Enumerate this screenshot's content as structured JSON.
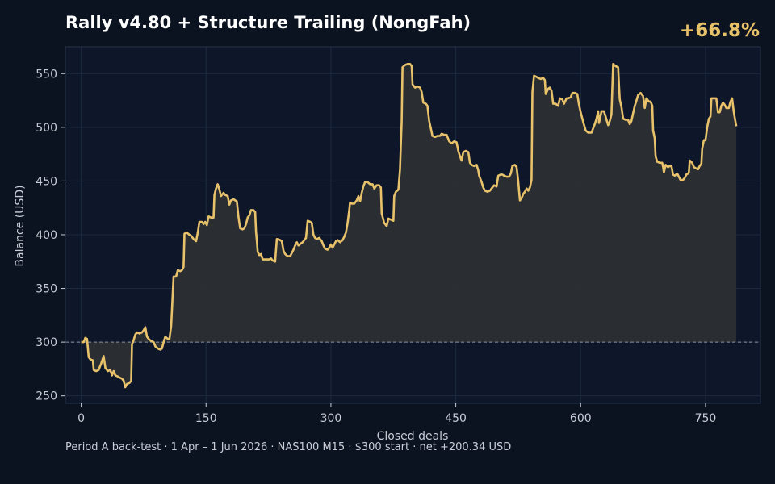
{
  "header": {
    "title": "Rally v4.80 + Structure Trailing (NongFah)",
    "return_pct": "+66.8%"
  },
  "footer": {
    "caption": "Period A back-test  ·  1 Apr – 1 Jun 2026  ·  NAS100 M15  ·  $300 start  ·  net +200.34 USD"
  },
  "colors": {
    "background": "#0b1220",
    "plot_bg": "#0e172a",
    "line": "#e8c26a",
    "fill": "#2e3033",
    "grid": "#1c2a40",
    "text": "#c8cdd6",
    "title": "#ffffff",
    "accent": "#e8c26a",
    "baseline": "#8a93a0"
  },
  "chart_data": {
    "type": "line",
    "xlabel": "Closed deals",
    "ylabel": "Balance (USD)",
    "xlim": [
      -19,
      816
    ],
    "ylim": [
      243,
      575
    ],
    "xticks": [
      0,
      150,
      300,
      450,
      600,
      750
    ],
    "yticks": [
      250,
      300,
      350,
      400,
      450,
      500,
      550
    ],
    "baseline": 300,
    "grid": true,
    "points": [
      [
        0,
        300
      ],
      [
        3,
        300
      ],
      [
        5,
        304
      ],
      [
        7,
        303
      ],
      [
        9,
        286
      ],
      [
        11,
        284
      ],
      [
        14,
        283
      ],
      [
        15,
        274
      ],
      [
        18,
        273
      ],
      [
        21,
        274
      ],
      [
        24,
        280
      ],
      [
        27,
        287
      ],
      [
        29,
        276
      ],
      [
        32,
        273
      ],
      [
        35,
        274
      ],
      [
        37,
        269
      ],
      [
        39,
        273
      ],
      [
        41,
        269
      ],
      [
        44,
        268
      ],
      [
        46,
        267
      ],
      [
        49,
        266
      ],
      [
        51,
        264
      ],
      [
        53,
        258
      ],
      [
        55,
        261
      ],
      [
        58,
        262
      ],
      [
        60,
        264
      ],
      [
        61,
        298
      ],
      [
        63,
        302
      ],
      [
        65,
        307
      ],
      [
        67,
        309
      ],
      [
        70,
        308
      ],
      [
        73,
        309
      ],
      [
        75,
        311
      ],
      [
        77,
        314
      ],
      [
        79,
        305
      ],
      [
        81,
        303
      ],
      [
        84,
        301
      ],
      [
        87,
        300
      ],
      [
        89,
        296
      ],
      [
        92,
        294
      ],
      [
        95,
        293
      ],
      [
        97,
        294
      ],
      [
        99,
        300
      ],
      [
        101,
        305
      ],
      [
        104,
        303
      ],
      [
        106,
        303
      ],
      [
        108,
        315
      ],
      [
        109,
        330
      ],
      [
        110,
        346
      ],
      [
        111,
        361
      ],
      [
        114,
        361
      ],
      [
        116,
        367
      ],
      [
        119,
        366
      ],
      [
        121,
        367
      ],
      [
        123,
        370
      ],
      [
        124,
        401
      ],
      [
        127,
        402
      ],
      [
        130,
        400
      ],
      [
        132,
        399
      ],
      [
        135,
        396
      ],
      [
        138,
        394
      ],
      [
        140,
        402
      ],
      [
        142,
        412
      ],
      [
        145,
        412
      ],
      [
        147,
        410
      ],
      [
        149,
        412
      ],
      [
        151,
        409
      ],
      [
        153,
        417
      ],
      [
        156,
        416
      ],
      [
        159,
        416
      ],
      [
        160,
        437
      ],
      [
        162,
        443
      ],
      [
        164,
        447
      ],
      [
        166,
        442
      ],
      [
        168,
        436
      ],
      [
        171,
        439
      ],
      [
        173,
        437
      ],
      [
        176,
        436
      ],
      [
        178,
        428
      ],
      [
        180,
        432
      ],
      [
        183,
        433
      ],
      [
        185,
        432
      ],
      [
        187,
        431
      ],
      [
        189,
        416
      ],
      [
        191,
        406
      ],
      [
        194,
        405
      ],
      [
        196,
        406
      ],
      [
        198,
        410
      ],
      [
        200,
        416
      ],
      [
        202,
        418
      ],
      [
        204,
        423
      ],
      [
        207,
        423
      ],
      [
        209,
        421
      ],
      [
        210,
        403
      ],
      [
        211,
        394
      ],
      [
        212,
        384
      ],
      [
        214,
        381
      ],
      [
        216,
        382
      ],
      [
        218,
        377
      ],
      [
        222,
        377
      ],
      [
        226,
        377
      ],
      [
        228,
        378
      ],
      [
        230,
        376
      ],
      [
        233,
        375
      ],
      [
        235,
        396
      ],
      [
        239,
        395
      ],
      [
        241,
        394
      ],
      [
        243,
        385
      ],
      [
        245,
        382
      ],
      [
        248,
        380
      ],
      [
        251,
        380
      ],
      [
        253,
        383
      ],
      [
        255,
        386
      ],
      [
        257,
        390
      ],
      [
        259,
        393
      ],
      [
        261,
        390
      ],
      [
        264,
        392
      ],
      [
        266,
        393
      ],
      [
        268,
        395
      ],
      [
        270,
        397
      ],
      [
        272,
        413
      ],
      [
        275,
        412
      ],
      [
        277,
        411
      ],
      [
        279,
        400
      ],
      [
        281,
        397
      ],
      [
        283,
        396
      ],
      [
        286,
        397
      ],
      [
        289,
        394
      ],
      [
        291,
        390
      ],
      [
        293,
        387
      ],
      [
        296,
        386
      ],
      [
        298,
        388
      ],
      [
        300,
        391
      ],
      [
        302,
        388
      ],
      [
        304,
        391
      ],
      [
        306,
        394
      ],
      [
        308,
        395
      ],
      [
        311,
        393
      ],
      [
        314,
        395
      ],
      [
        316,
        398
      ],
      [
        318,
        402
      ],
      [
        320,
        411
      ],
      [
        322,
        423
      ],
      [
        323,
        430
      ],
      [
        325,
        429
      ],
      [
        328,
        429
      ],
      [
        331,
        432
      ],
      [
        333,
        436
      ],
      [
        335,
        431
      ],
      [
        337,
        439
      ],
      [
        339,
        445
      ],
      [
        341,
        449
      ],
      [
        344,
        449
      ],
      [
        347,
        447
      ],
      [
        350,
        447
      ],
      [
        352,
        443
      ],
      [
        355,
        446
      ],
      [
        358,
        446
      ],
      [
        360,
        444
      ],
      [
        361,
        420
      ],
      [
        364,
        411
      ],
      [
        367,
        408
      ],
      [
        369,
        415
      ],
      [
        372,
        414
      ],
      [
        375,
        413
      ],
      [
        376,
        436
      ],
      [
        378,
        440
      ],
      [
        381,
        442
      ],
      [
        383,
        461
      ],
      [
        385,
        506
      ],
      [
        386,
        556
      ],
      [
        389,
        558
      ],
      [
        392,
        559
      ],
      [
        395,
        559
      ],
      [
        397,
        557
      ],
      [
        398,
        540
      ],
      [
        401,
        537
      ],
      [
        404,
        538
      ],
      [
        407,
        537
      ],
      [
        409,
        533
      ],
      [
        411,
        523
      ],
      [
        414,
        522
      ],
      [
        416,
        520
      ],
      [
        418,
        506
      ],
      [
        420,
        499
      ],
      [
        422,
        492
      ],
      [
        425,
        491
      ],
      [
        428,
        492
      ],
      [
        431,
        492
      ],
      [
        433,
        494
      ],
      [
        436,
        493
      ],
      [
        439,
        493
      ],
      [
        442,
        487
      ],
      [
        445,
        485
      ],
      [
        448,
        487
      ],
      [
        451,
        486
      ],
      [
        453,
        478
      ],
      [
        455,
        473
      ],
      [
        457,
        469
      ],
      [
        459,
        477
      ],
      [
        462,
        478
      ],
      [
        465,
        477
      ],
      [
        467,
        467
      ],
      [
        469,
        465
      ],
      [
        472,
        464
      ],
      [
        475,
        465
      ],
      [
        477,
        460
      ],
      [
        478,
        455
      ],
      [
        481,
        449
      ],
      [
        483,
        444
      ],
      [
        485,
        441
      ],
      [
        488,
        440
      ],
      [
        491,
        441
      ],
      [
        493,
        443
      ],
      [
        496,
        446
      ],
      [
        499,
        445
      ],
      [
        501,
        455
      ],
      [
        504,
        456
      ],
      [
        506,
        456
      ],
      [
        508,
        455
      ],
      [
        511,
        454
      ],
      [
        514,
        454
      ],
      [
        516,
        457
      ],
      [
        518,
        464
      ],
      [
        521,
        465
      ],
      [
        523,
        463
      ],
      [
        525,
        450
      ],
      [
        527,
        432
      ],
      [
        529,
        434
      ],
      [
        531,
        438
      ],
      [
        533,
        440
      ],
      [
        535,
        443
      ],
      [
        537,
        441
      ],
      [
        539,
        444
      ],
      [
        541,
        451
      ],
      [
        542,
        533
      ],
      [
        544,
        548
      ],
      [
        547,
        547
      ],
      [
        549,
        546
      ],
      [
        552,
        545
      ],
      [
        555,
        546
      ],
      [
        557,
        544
      ],
      [
        558,
        531
      ],
      [
        561,
        536
      ],
      [
        563,
        537
      ],
      [
        565,
        534
      ],
      [
        567,
        522
      ],
      [
        570,
        522
      ],
      [
        573,
        520
      ],
      [
        575,
        527
      ],
      [
        578,
        526
      ],
      [
        580,
        522
      ],
      [
        583,
        527
      ],
      [
        585,
        527
      ],
      [
        588,
        528
      ],
      [
        590,
        532
      ],
      [
        593,
        532
      ],
      [
        596,
        531
      ],
      [
        598,
        521
      ],
      [
        600,
        514
      ],
      [
        603,
        505
      ],
      [
        606,
        497
      ],
      [
        609,
        495
      ],
      [
        613,
        495
      ],
      [
        615,
        499
      ],
      [
        617,
        503
      ],
      [
        619,
        508
      ],
      [
        621,
        515
      ],
      [
        622,
        504
      ],
      [
        625,
        515
      ],
      [
        628,
        515
      ],
      [
        630,
        510
      ],
      [
        633,
        502
      ],
      [
        635,
        506
      ],
      [
        637,
        512
      ],
      [
        638,
        537
      ],
      [
        639,
        559
      ],
      [
        642,
        557
      ],
      [
        645,
        556
      ],
      [
        646,
        540
      ],
      [
        647,
        526
      ],
      [
        649,
        519
      ],
      [
        651,
        508
      ],
      [
        654,
        507
      ],
      [
        657,
        507
      ],
      [
        659,
        503
      ],
      [
        661,
        506
      ],
      [
        663,
        513
      ],
      [
        665,
        520
      ],
      [
        667,
        525
      ],
      [
        669,
        530
      ],
      [
        672,
        532
      ],
      [
        675,
        529
      ],
      [
        677,
        518
      ],
      [
        679,
        527
      ],
      [
        682,
        524
      ],
      [
        684,
        524
      ],
      [
        686,
        520
      ],
      [
        687,
        497
      ],
      [
        689,
        490
      ],
      [
        690,
        473
      ],
      [
        692,
        468
      ],
      [
        695,
        467
      ],
      [
        698,
        467
      ],
      [
        699,
        463
      ],
      [
        700,
        458
      ],
      [
        702,
        465
      ],
      [
        705,
        463
      ],
      [
        707,
        464
      ],
      [
        709,
        464
      ],
      [
        711,
        456
      ],
      [
        713,
        455
      ],
      [
        716,
        457
      ],
      [
        718,
        454
      ],
      [
        720,
        451
      ],
      [
        723,
        451
      ],
      [
        725,
        453
      ],
      [
        727,
        456
      ],
      [
        729,
        457
      ],
      [
        730,
        458
      ],
      [
        731,
        469
      ],
      [
        734,
        467
      ],
      [
        736,
        463
      ],
      [
        738,
        462
      ],
      [
        741,
        461
      ],
      [
        743,
        464
      ],
      [
        745,
        466
      ],
      [
        746,
        480
      ],
      [
        748,
        488
      ],
      [
        750,
        488
      ],
      [
        752,
        500
      ],
      [
        754,
        508
      ],
      [
        756,
        510
      ],
      [
        757,
        527
      ],
      [
        760,
        527
      ],
      [
        763,
        527
      ],
      [
        765,
        514
      ],
      [
        767,
        514
      ],
      [
        769,
        520
      ],
      [
        771,
        523
      ],
      [
        773,
        521
      ],
      [
        775,
        518
      ],
      [
        778,
        518
      ],
      [
        780,
        524
      ],
      [
        782,
        527
      ],
      [
        784,
        514
      ],
      [
        786,
        505
      ],
      [
        787,
        501
      ]
    ]
  }
}
